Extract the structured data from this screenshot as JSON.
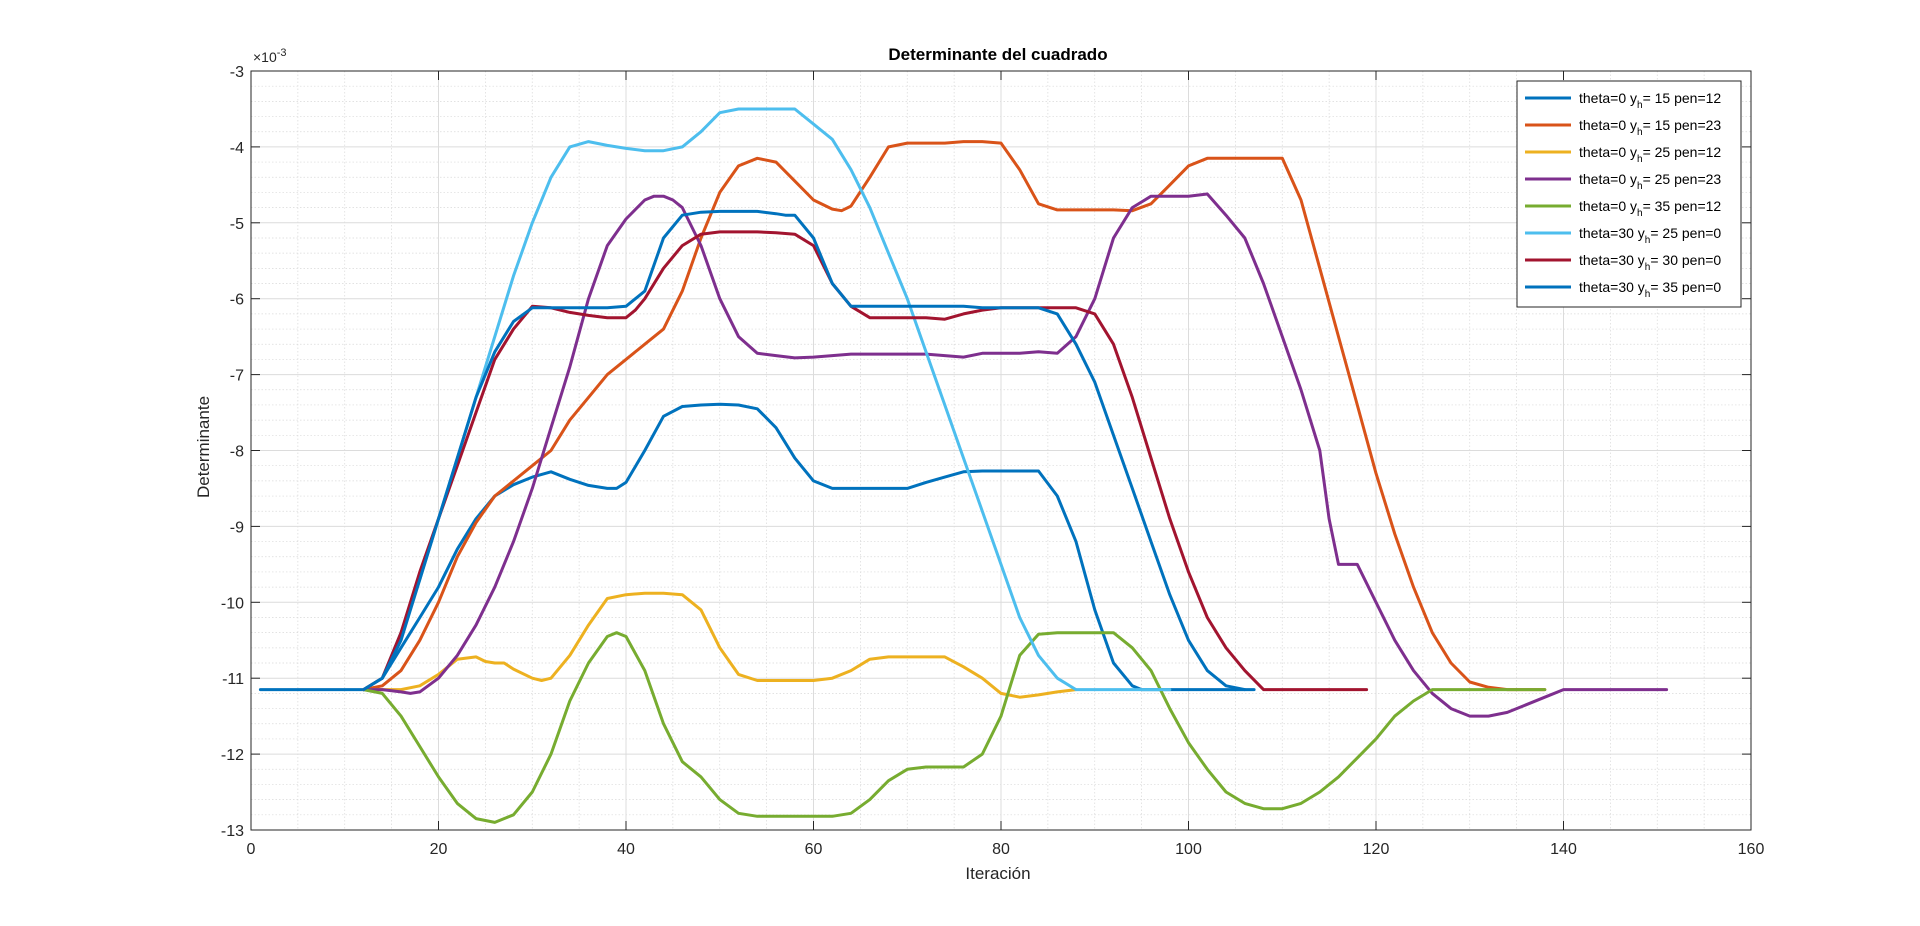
{
  "chart_data": {
    "type": "line",
    "title": "Determinante del cuadrado",
    "xlabel": "Iteración",
    "ylabel": "Determinante",
    "exponent_label": {
      "base": "×10",
      "power": "-3"
    },
    "xlim": [
      0,
      160
    ],
    "ylim": [
      -13,
      -3
    ],
    "xticks": [
      0,
      20,
      40,
      60,
      80,
      100,
      120,
      140,
      160
    ],
    "yticks": [
      -3,
      -4,
      -5,
      -6,
      -7,
      -8,
      -9,
      -10,
      -11,
      -12,
      -13
    ],
    "grid": true,
    "minor_grid": true,
    "legend_position": "top-right",
    "series": [
      {
        "name": "theta=0 y_h= 15 pen=12",
        "legend_main": "theta=0 y",
        "legend_sub": "h",
        "legend_rest": "= 15 pen=12",
        "color": "#0072BD",
        "x": [
          1,
          12,
          14,
          16,
          18,
          20,
          22,
          24,
          26,
          28,
          30,
          32,
          34,
          36,
          38,
          39,
          40,
          42,
          44,
          46,
          48,
          50,
          52,
          54,
          56,
          58,
          60,
          62,
          64,
          66,
          68,
          70,
          72,
          74,
          76,
          78,
          80,
          82,
          84,
          86,
          88,
          90,
          92,
          94,
          95,
          96,
          106
        ],
        "y": [
          -11.15,
          -11.15,
          -11.0,
          -10.6,
          -10.2,
          -9.8,
          -9.3,
          -8.9,
          -8.6,
          -8.45,
          -8.35,
          -8.28,
          -8.38,
          -8.46,
          -8.5,
          -8.5,
          -8.42,
          -8.0,
          -7.55,
          -7.42,
          -7.4,
          -7.39,
          -7.4,
          -7.45,
          -7.7,
          -8.1,
          -8.4,
          -8.5,
          -8.5,
          -8.5,
          -8.5,
          -8.5,
          -8.42,
          -8.35,
          -8.28,
          -8.27,
          -8.27,
          -8.27,
          -8.27,
          -8.6,
          -9.2,
          -10.1,
          -10.8,
          -11.1,
          -11.15,
          -11.15,
          -11.15
        ]
      },
      {
        "name": "theta=0 y_h= 15 pen=23",
        "legend_main": "theta=0 y",
        "legend_sub": "h",
        "legend_rest": "= 15 pen=23",
        "color": "#D95319",
        "x": [
          12,
          14,
          16,
          18,
          20,
          22,
          24,
          26,
          28,
          30,
          32,
          34,
          36,
          38,
          40,
          42,
          44,
          46,
          48,
          50,
          52,
          54,
          56,
          58,
          60,
          62,
          63,
          64,
          66,
          68,
          70,
          72,
          74,
          76,
          78,
          80,
          82,
          84,
          86,
          88,
          90,
          92,
          94,
          96,
          98,
          100,
          102,
          104,
          106,
          108,
          110,
          112,
          114,
          116,
          118,
          120,
          122,
          124,
          126,
          128,
          130,
          132,
          134,
          136,
          138
        ],
        "y": [
          -11.15,
          -11.1,
          -10.9,
          -10.5,
          -10.0,
          -9.4,
          -8.95,
          -8.6,
          -8.4,
          -8.2,
          -8.0,
          -7.6,
          -7.3,
          -7.0,
          -6.8,
          -6.6,
          -6.4,
          -5.9,
          -5.2,
          -4.6,
          -4.25,
          -4.15,
          -4.2,
          -4.45,
          -4.7,
          -4.82,
          -4.84,
          -4.78,
          -4.4,
          -4.0,
          -3.95,
          -3.95,
          -3.95,
          -3.93,
          -3.93,
          -3.95,
          -4.3,
          -4.75,
          -4.83,
          -4.83,
          -4.83,
          -4.83,
          -4.84,
          -4.75,
          -4.5,
          -4.25,
          -4.15,
          -4.15,
          -4.15,
          -4.15,
          -4.15,
          -4.7,
          -5.6,
          -6.5,
          -7.4,
          -8.3,
          -9.1,
          -9.8,
          -10.4,
          -10.8,
          -11.05,
          -11.12,
          -11.15,
          -11.15,
          -11.15
        ]
      },
      {
        "name": "theta=0 y_h= 25 pen=12",
        "legend_main": "theta=0 y",
        "legend_sub": "h",
        "legend_rest": "= 25 pen=12",
        "color": "#EDB120",
        "x": [
          12,
          14,
          16,
          18,
          20,
          22,
          24,
          25,
          26,
          27,
          28,
          30,
          31,
          32,
          34,
          36,
          38,
          40,
          42,
          44,
          46,
          48,
          50,
          52,
          54,
          56,
          58,
          60,
          62,
          64,
          66,
          68,
          70,
          72,
          74,
          76,
          78,
          80,
          82,
          84,
          86,
          88
        ],
        "y": [
          -11.15,
          -11.15,
          -11.15,
          -11.1,
          -10.95,
          -10.75,
          -10.72,
          -10.78,
          -10.8,
          -10.8,
          -10.88,
          -11.0,
          -11.03,
          -11.0,
          -10.7,
          -10.3,
          -9.95,
          -9.9,
          -9.88,
          -9.88,
          -9.9,
          -10.1,
          -10.6,
          -10.95,
          -11.03,
          -11.03,
          -11.03,
          -11.03,
          -11.0,
          -10.9,
          -10.75,
          -10.72,
          -10.72,
          -10.72,
          -10.72,
          -10.85,
          -11.0,
          -11.2,
          -11.25,
          -11.22,
          -11.18,
          -11.15
        ]
      },
      {
        "name": "theta=0 y_h= 25 pen=23",
        "legend_main": "theta=0 y",
        "legend_sub": "h",
        "legend_rest": "= 25 pen=23",
        "color": "#7E2F8E",
        "x": [
          12,
          14,
          16,
          17,
          18,
          20,
          22,
          24,
          26,
          28,
          30,
          32,
          34,
          36,
          38,
          40,
          42,
          43,
          44,
          45,
          46,
          48,
          50,
          52,
          54,
          56,
          58,
          60,
          62,
          64,
          66,
          68,
          70,
          72,
          74,
          76,
          78,
          80,
          82,
          84,
          86,
          88,
          90,
          92,
          94,
          96,
          98,
          99,
          100,
          102,
          104,
          106,
          108,
          110,
          112,
          114,
          115,
          116,
          118,
          120,
          122,
          124,
          126,
          128,
          130,
          132,
          134,
          136,
          138,
          140,
          142,
          144,
          146,
          148,
          151
        ],
        "y": [
          -11.15,
          -11.15,
          -11.18,
          -11.2,
          -11.18,
          -11.0,
          -10.7,
          -10.3,
          -9.8,
          -9.2,
          -8.5,
          -7.7,
          -6.9,
          -6.0,
          -5.3,
          -4.95,
          -4.7,
          -4.65,
          -4.65,
          -4.7,
          -4.8,
          -5.3,
          -6.0,
          -6.5,
          -6.72,
          -6.75,
          -6.78,
          -6.77,
          -6.75,
          -6.73,
          -6.73,
          -6.73,
          -6.73,
          -6.73,
          -6.75,
          -6.77,
          -6.72,
          -6.72,
          -6.72,
          -6.7,
          -6.72,
          -6.5,
          -6.0,
          -5.2,
          -4.8,
          -4.65,
          -4.65,
          -4.65,
          -4.65,
          -4.62,
          -4.9,
          -5.2,
          -5.8,
          -6.5,
          -7.2,
          -8.0,
          -8.9,
          -9.5,
          -9.5,
          -10.0,
          -10.5,
          -10.9,
          -11.2,
          -11.4,
          -11.5,
          -11.5,
          -11.45,
          -11.35,
          -11.25,
          -11.15,
          -11.15,
          -11.15,
          -11.15,
          -11.15,
          -11.15
        ]
      },
      {
        "name": "theta=0 y_h= 35 pen=12",
        "legend_main": "theta=0 y",
        "legend_sub": "h",
        "legend_rest": "= 35 pen=12",
        "color": "#77AC30",
        "x": [
          12,
          14,
          16,
          18,
          20,
          22,
          24,
          26,
          28,
          30,
          32,
          34,
          36,
          38,
          39,
          40,
          42,
          44,
          46,
          48,
          50,
          52,
          54,
          56,
          58,
          60,
          62,
          64,
          66,
          68,
          70,
          72,
          74,
          76,
          78,
          80,
          82,
          84,
          86,
          88,
          90,
          92,
          94,
          96,
          98,
          100,
          102,
          104,
          106,
          108,
          110,
          112,
          114,
          116,
          118,
          120,
          122,
          124,
          126,
          128,
          130,
          132,
          134,
          136,
          138
        ],
        "y": [
          -11.15,
          -11.2,
          -11.5,
          -11.9,
          -12.3,
          -12.65,
          -12.85,
          -12.9,
          -12.8,
          -12.5,
          -12.0,
          -11.3,
          -10.8,
          -10.45,
          -10.4,
          -10.45,
          -10.9,
          -11.6,
          -12.1,
          -12.3,
          -12.6,
          -12.78,
          -12.82,
          -12.82,
          -12.82,
          -12.82,
          -12.82,
          -12.78,
          -12.6,
          -12.35,
          -12.2,
          -12.17,
          -12.17,
          -12.17,
          -12.0,
          -11.5,
          -10.7,
          -10.42,
          -10.4,
          -10.4,
          -10.4,
          -10.4,
          -10.6,
          -10.9,
          -11.4,
          -11.85,
          -12.2,
          -12.5,
          -12.65,
          -12.72,
          -12.72,
          -12.65,
          -12.5,
          -12.3,
          -12.05,
          -11.8,
          -11.5,
          -11.3,
          -11.15,
          -11.15,
          -11.15,
          -11.15,
          -11.15,
          -11.15,
          -11.15
        ]
      },
      {
        "name": "theta=30 y_h= 25 pen=0",
        "legend_main": "theta=30 y",
        "legend_sub": "h",
        "legend_rest": "= 25 pen=0",
        "color": "#4DBEEE",
        "x": [
          12,
          14,
          16,
          18,
          20,
          22,
          24,
          26,
          28,
          30,
          32,
          34,
          36,
          38,
          40,
          42,
          44,
          46,
          48,
          50,
          52,
          54,
          56,
          58,
          60,
          62,
          64,
          66,
          68,
          70,
          72,
          74,
          76,
          78,
          80,
          82,
          84,
          86,
          88,
          90,
          92,
          94,
          96,
          98
        ],
        "y": [
          -11.15,
          -11.0,
          -10.4,
          -9.7,
          -8.9,
          -8.1,
          -7.3,
          -6.5,
          -5.7,
          -5.0,
          -4.4,
          -4.0,
          -3.93,
          -3.98,
          -4.02,
          -4.05,
          -4.05,
          -4.0,
          -3.8,
          -3.55,
          -3.5,
          -3.5,
          -3.5,
          -3.5,
          -3.7,
          -3.9,
          -4.3,
          -4.8,
          -5.4,
          -6.0,
          -6.7,
          -7.4,
          -8.1,
          -8.8,
          -9.5,
          -10.2,
          -10.7,
          -11.0,
          -11.15,
          -11.15,
          -11.15,
          -11.15,
          -11.15,
          -11.15
        ]
      },
      {
        "name": "theta=30 y_h= 30 pen=0",
        "legend_main": "theta=30 y",
        "legend_sub": "h",
        "legend_rest": "= 30 pen=0",
        "color": "#A2142F",
        "x": [
          12,
          14,
          16,
          18,
          20,
          22,
          24,
          26,
          28,
          30,
          32,
          34,
          36,
          38,
          40,
          41,
          42,
          44,
          46,
          48,
          50,
          52,
          54,
          56,
          58,
          60,
          62,
          64,
          66,
          68,
          70,
          72,
          74,
          76,
          78,
          80,
          82,
          84,
          86,
          88,
          90,
          92,
          94,
          96,
          98,
          100,
          102,
          104,
          106,
          108,
          110,
          112,
          114,
          116,
          119
        ],
        "y": [
          -11.15,
          -11.0,
          -10.4,
          -9.6,
          -8.9,
          -8.2,
          -7.5,
          -6.8,
          -6.4,
          -6.1,
          -6.12,
          -6.18,
          -6.22,
          -6.25,
          -6.25,
          -6.15,
          -6.0,
          -5.6,
          -5.3,
          -5.15,
          -5.12,
          -5.12,
          -5.12,
          -5.13,
          -5.15,
          -5.3,
          -5.8,
          -6.1,
          -6.25,
          -6.25,
          -6.25,
          -6.25,
          -6.27,
          -6.2,
          -6.15,
          -6.12,
          -6.12,
          -6.12,
          -6.12,
          -6.12,
          -6.2,
          -6.6,
          -7.3,
          -8.1,
          -8.9,
          -9.6,
          -10.2,
          -10.6,
          -10.9,
          -11.15,
          -11.15,
          -11.15,
          -11.15,
          -11.15,
          -11.15
        ]
      },
      {
        "name": "theta=30 y_h= 35 pen=0",
        "legend_main": "theta=30 y",
        "legend_sub": "h",
        "legend_rest": "= 35 pen=0",
        "color": "#0072BD",
        "x": [
          12,
          14,
          16,
          18,
          20,
          22,
          24,
          26,
          28,
          30,
          32,
          34,
          36,
          38,
          40,
          42,
          44,
          46,
          48,
          50,
          52,
          54,
          56,
          57,
          58,
          60,
          62,
          64,
          66,
          68,
          70,
          72,
          74,
          76,
          78,
          80,
          82,
          84,
          86,
          88,
          90,
          92,
          94,
          96,
          98,
          100,
          102,
          104,
          106,
          107
        ],
        "y": [
          -11.15,
          -11.0,
          -10.5,
          -9.7,
          -8.9,
          -8.1,
          -7.3,
          -6.7,
          -6.3,
          -6.12,
          -6.12,
          -6.12,
          -6.12,
          -6.12,
          -6.1,
          -5.9,
          -5.2,
          -4.9,
          -4.86,
          -4.85,
          -4.85,
          -4.85,
          -4.88,
          -4.9,
          -4.9,
          -5.2,
          -5.8,
          -6.1,
          -6.1,
          -6.1,
          -6.1,
          -6.1,
          -6.1,
          -6.1,
          -6.12,
          -6.12,
          -6.12,
          -6.12,
          -6.2,
          -6.6,
          -7.1,
          -7.8,
          -8.5,
          -9.2,
          -9.9,
          -10.5,
          -10.9,
          -11.1,
          -11.15,
          -11.15
        ]
      }
    ]
  }
}
